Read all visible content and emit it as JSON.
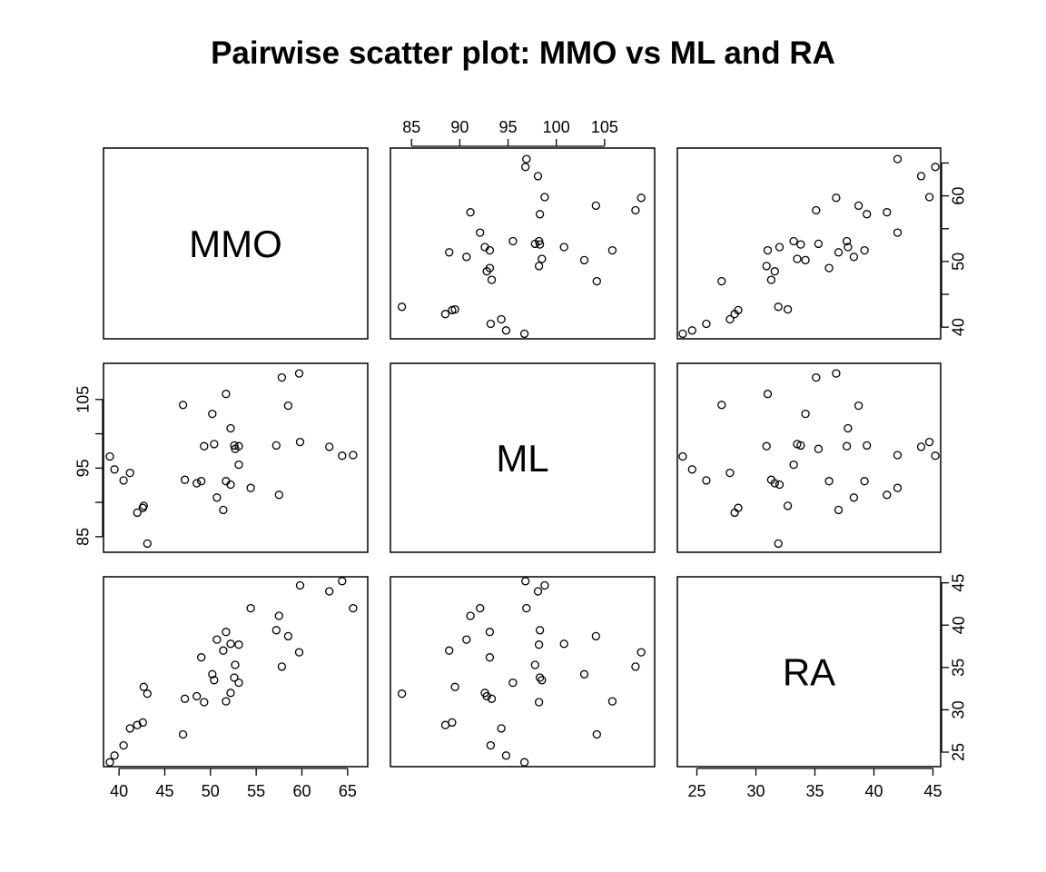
{
  "title": "Pairwise scatter plot: MMO vs ML and RA",
  "chart_data": {
    "type": "scatter",
    "title": "Pairwise scatter plot: MMO vs ML and RA",
    "variables": [
      "MMO",
      "ML",
      "RA"
    ],
    "axes": {
      "MMO": {
        "lim": [
          38.5,
          67
        ],
        "ticks": [
          40,
          45,
          50,
          55,
          60,
          65
        ]
      },
      "ML": {
        "lim": [
          83,
          110
        ],
        "ticks": [
          85,
          90,
          95,
          100,
          105
        ]
      },
      "RA": {
        "lim": [
          23.5,
          45.5
        ],
        "ticks": [
          25,
          30,
          35,
          40,
          45
        ]
      }
    },
    "tick_placement": {
      "top": "ML",
      "right": "MMO",
      "left": "ML",
      "bottom_left": "MMO",
      "bottom_right": "RA",
      "right_lower": "RA"
    },
    "data": [
      {
        "MMO": 39.0,
        "ML": 96.7,
        "RA": 23.8
      },
      {
        "MMO": 39.5,
        "ML": 94.8,
        "RA": 24.6
      },
      {
        "MMO": 40.5,
        "ML": 93.2,
        "RA": 25.8
      },
      {
        "MMO": 41.2,
        "ML": 94.3,
        "RA": 27.8
      },
      {
        "MMO": 42.0,
        "ML": 88.5,
        "RA": 28.2
      },
      {
        "MMO": 42.6,
        "ML": 89.2,
        "RA": 28.5
      },
      {
        "MMO": 42.7,
        "ML": 89.5,
        "RA": 32.7
      },
      {
        "MMO": 43.1,
        "ML": 84.0,
        "RA": 31.9
      },
      {
        "MMO": 47.0,
        "ML": 104.2,
        "RA": 27.1
      },
      {
        "MMO": 47.2,
        "ML": 93.3,
        "RA": 31.3
      },
      {
        "MMO": 48.5,
        "ML": 92.8,
        "RA": 31.6
      },
      {
        "MMO": 49.0,
        "ML": 93.1,
        "RA": 36.2
      },
      {
        "MMO": 49.3,
        "ML": 98.2,
        "RA": 30.9
      },
      {
        "MMO": 50.2,
        "ML": 102.9,
        "RA": 34.2
      },
      {
        "MMO": 50.4,
        "ML": 98.5,
        "RA": 33.5
      },
      {
        "MMO": 50.7,
        "ML": 90.7,
        "RA": 38.3
      },
      {
        "MMO": 51.4,
        "ML": 88.9,
        "RA": 37.0
      },
      {
        "MMO": 51.7,
        "ML": 93.1,
        "RA": 39.2
      },
      {
        "MMO": 51.7,
        "ML": 105.8,
        "RA": 31.0
      },
      {
        "MMO": 52.2,
        "ML": 92.6,
        "RA": 32.0
      },
      {
        "MMO": 52.2,
        "ML": 100.8,
        "RA": 37.8
      },
      {
        "MMO": 52.6,
        "ML": 98.3,
        "RA": 33.8
      },
      {
        "MMO": 52.7,
        "ML": 97.8,
        "RA": 35.3
      },
      {
        "MMO": 53.1,
        "ML": 98.2,
        "RA": 37.7
      },
      {
        "MMO": 53.1,
        "ML": 95.5,
        "RA": 33.2
      },
      {
        "MMO": 54.4,
        "ML": 92.1,
        "RA": 42.0
      },
      {
        "MMO": 57.2,
        "ML": 98.3,
        "RA": 39.4
      },
      {
        "MMO": 57.5,
        "ML": 91.1,
        "RA": 41.1
      },
      {
        "MMO": 57.8,
        "ML": 108.2,
        "RA": 35.1
      },
      {
        "MMO": 58.5,
        "ML": 104.1,
        "RA": 38.7
      },
      {
        "MMO": 59.7,
        "ML": 108.8,
        "RA": 36.8
      },
      {
        "MMO": 59.8,
        "ML": 98.8,
        "RA": 44.7
      },
      {
        "MMO": 63.0,
        "ML": 98.1,
        "RA": 44.0
      },
      {
        "MMO": 64.4,
        "ML": 96.8,
        "RA": 45.2
      },
      {
        "MMO": 65.6,
        "ML": 96.9,
        "RA": 42.0
      }
    ]
  }
}
